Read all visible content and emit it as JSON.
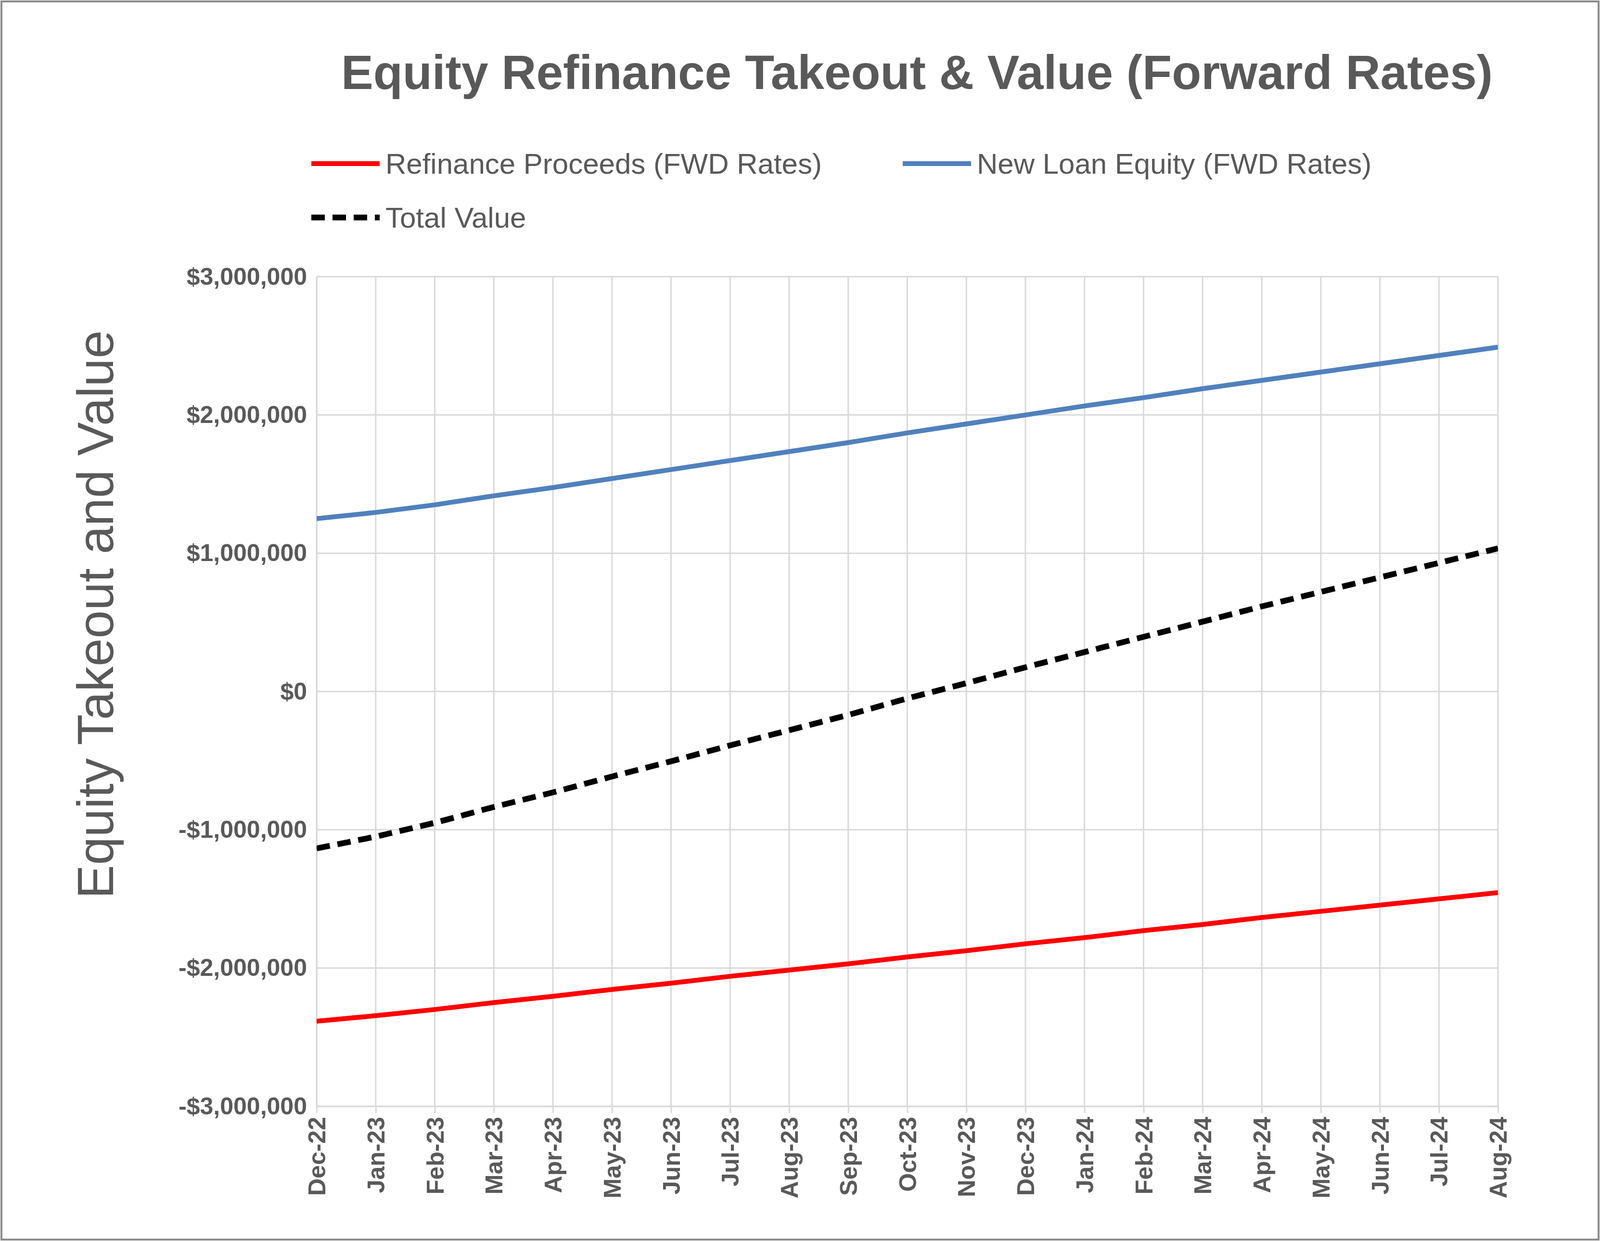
{
  "chart_data": {
    "type": "line",
    "title": "Equity Refinance Takeout & Value (Forward Rates)",
    "y_label": "Equity Takeout and Value",
    "categories": [
      "Dec-22",
      "Jan-23",
      "Feb-23",
      "Mar-23",
      "Apr-23",
      "May-23",
      "Jun-23",
      "Jul-23",
      "Aug-23",
      "Sep-23",
      "Oct-23",
      "Nov-23",
      "Dec-23",
      "Jan-24",
      "Feb-24",
      "Mar-24",
      "Apr-24",
      "May-24",
      "Jun-24",
      "Jul-24",
      "Aug-24"
    ],
    "series": [
      {
        "name": "Refinance Proceeds (FWD Rates)",
        "color": "#ff0000",
        "line_style": "solid",
        "values": [
          -2385000,
          -2345000,
          -2300000,
          -2250000,
          -2205000,
          -2155000,
          -2110000,
          -2060000,
          -2015000,
          -1970000,
          -1920000,
          -1875000,
          -1825000,
          -1780000,
          -1730000,
          -1685000,
          -1635000,
          -1590000,
          -1545000,
          -1500000,
          -1455000
        ]
      },
      {
        "name": "New Loan Equity (FWD Rates)",
        "color": "#4f81bd",
        "line_style": "solid",
        "values": [
          1250000,
          1295000,
          1350000,
          1415000,
          1475000,
          1540000,
          1605000,
          1670000,
          1735000,
          1800000,
          1870000,
          1935000,
          2000000,
          2065000,
          2125000,
          2190000,
          2250000,
          2310000,
          2370000,
          2430000,
          2490000
        ]
      },
      {
        "name": "Total Value",
        "color": "#000000",
        "line_style": "dashed",
        "values": [
          -1135000,
          -1050000,
          -950000,
          -835000,
          -730000,
          -615000,
          -505000,
          -390000,
          -280000,
          -170000,
          -50000,
          60000,
          175000,
          285000,
          395000,
          505000,
          615000,
          720000,
          825000,
          930000,
          1035000
        ]
      }
    ],
    "ylim": [
      -3000000,
      3000000
    ],
    "yticks": [
      {
        "value": -3000000,
        "label": "-$3,000,000"
      },
      {
        "value": -2000000,
        "label": "-$2,000,000"
      },
      {
        "value": -1000000,
        "label": "-$1,000,000"
      },
      {
        "value": 0,
        "label": "$0"
      },
      {
        "value": 1000000,
        "label": "$1,000,000"
      },
      {
        "value": 2000000,
        "label": "$2,000,000"
      },
      {
        "value": 3000000,
        "label": "$3,000,000"
      }
    ],
    "grid": true,
    "legend": "top"
  }
}
